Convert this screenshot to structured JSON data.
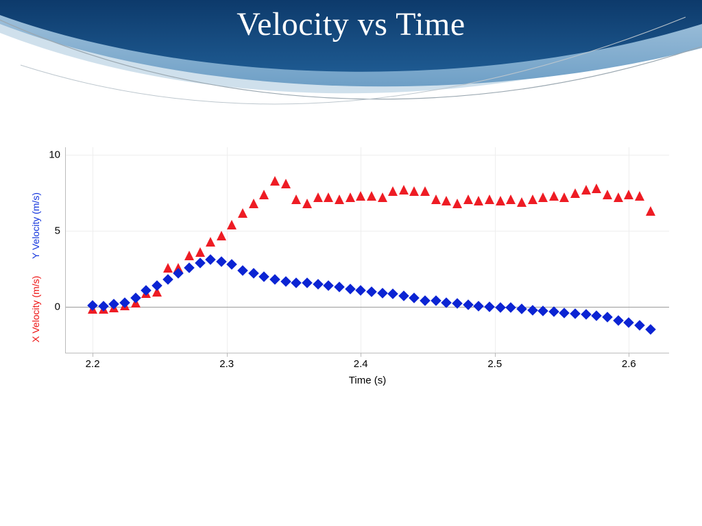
{
  "slide": {
    "title": "Velocity vs Time",
    "title_color": "#ffffff",
    "title_fontsize": 48,
    "banner_colors": {
      "dark": "#0d3a6b",
      "mid": "#2f6ca0",
      "light": "#7fa9cc",
      "pale": "#cfe0ec"
    }
  },
  "chart": {
    "type": "scatter",
    "background_color": "#ffffff",
    "grid_color": "#eeeeee",
    "axis_color": "#bbbbbb",
    "zero_line_color": "#999999",
    "xlabel": "Time (s)",
    "xlabel_fontsize": 15,
    "ylabels": [
      {
        "text": "X Velocity (m/s)",
        "color": "#ee1111"
      },
      {
        "text": "Y Velocity (m/s)",
        "color": "#1133dd"
      }
    ],
    "ylabel_fontsize": 14,
    "tick_fontsize": 15,
    "xlim": [
      2.18,
      2.63
    ],
    "ylim": [
      -3.0,
      10.5
    ],
    "xticks": [
      2.2,
      2.3,
      2.4,
      2.5,
      2.6
    ],
    "yticks": [
      0,
      5,
      10
    ],
    "series": [
      {
        "name": "X Velocity",
        "marker": "triangle",
        "color": "#ee1c24",
        "marker_size": 14,
        "x": [
          2.2,
          2.208,
          2.216,
          2.224,
          2.232,
          2.24,
          2.248,
          2.256,
          2.264,
          2.272,
          2.28,
          2.288,
          2.296,
          2.304,
          2.312,
          2.32,
          2.328,
          2.336,
          2.344,
          2.352,
          2.36,
          2.368,
          2.376,
          2.384,
          2.392,
          2.4,
          2.408,
          2.416,
          2.424,
          2.432,
          2.44,
          2.448,
          2.456,
          2.464,
          2.472,
          2.48,
          2.488,
          2.496,
          2.504,
          2.512,
          2.52,
          2.528,
          2.536,
          2.544,
          2.552,
          2.56,
          2.568,
          2.576,
          2.584,
          2.592,
          2.6,
          2.608,
          2.616
        ],
        "y": [
          -0.1,
          -0.1,
          -0.05,
          0.1,
          0.3,
          0.9,
          1.0,
          2.6,
          2.6,
          3.4,
          3.6,
          4.3,
          4.7,
          5.4,
          6.2,
          6.8,
          7.4,
          8.3,
          8.1,
          7.1,
          6.8,
          7.2,
          7.2,
          7.1,
          7.2,
          7.3,
          7.3,
          7.2,
          7.6,
          7.7,
          7.6,
          7.6,
          7.1,
          7.0,
          6.8,
          7.1,
          7.0,
          7.1,
          7.0,
          7.1,
          6.9,
          7.1,
          7.2,
          7.3,
          7.2,
          7.5,
          7.7,
          7.8,
          7.4,
          7.2,
          7.4,
          7.3,
          6.3
        ]
      },
      {
        "name": "Y Velocity",
        "marker": "diamond",
        "color": "#0b24d3",
        "marker_size": 11,
        "x": [
          2.2,
          2.208,
          2.216,
          2.224,
          2.232,
          2.24,
          2.248,
          2.256,
          2.264,
          2.272,
          2.28,
          2.288,
          2.296,
          2.304,
          2.312,
          2.32,
          2.328,
          2.336,
          2.344,
          2.352,
          2.36,
          2.368,
          2.376,
          2.384,
          2.392,
          2.4,
          2.408,
          2.416,
          2.424,
          2.432,
          2.44,
          2.448,
          2.456,
          2.464,
          2.472,
          2.48,
          2.488,
          2.496,
          2.504,
          2.512,
          2.52,
          2.528,
          2.536,
          2.544,
          2.552,
          2.56,
          2.568,
          2.576,
          2.584,
          2.592,
          2.6,
          2.608,
          2.616
        ],
        "y": [
          0.1,
          0.05,
          0.2,
          0.3,
          0.6,
          1.1,
          1.4,
          1.8,
          2.2,
          2.6,
          2.9,
          3.1,
          3.0,
          2.8,
          2.4,
          2.2,
          2.0,
          1.8,
          1.7,
          1.6,
          1.6,
          1.5,
          1.4,
          1.3,
          1.2,
          1.1,
          1.0,
          0.9,
          0.85,
          0.75,
          0.6,
          0.4,
          0.4,
          0.3,
          0.25,
          0.15,
          0.05,
          0.0,
          -0.05,
          -0.05,
          -0.1,
          -0.2,
          -0.25,
          -0.3,
          -0.4,
          -0.45,
          -0.5,
          -0.55,
          -0.65,
          -0.9,
          -1.0,
          -1.2,
          -1.45
        ]
      }
    ]
  }
}
